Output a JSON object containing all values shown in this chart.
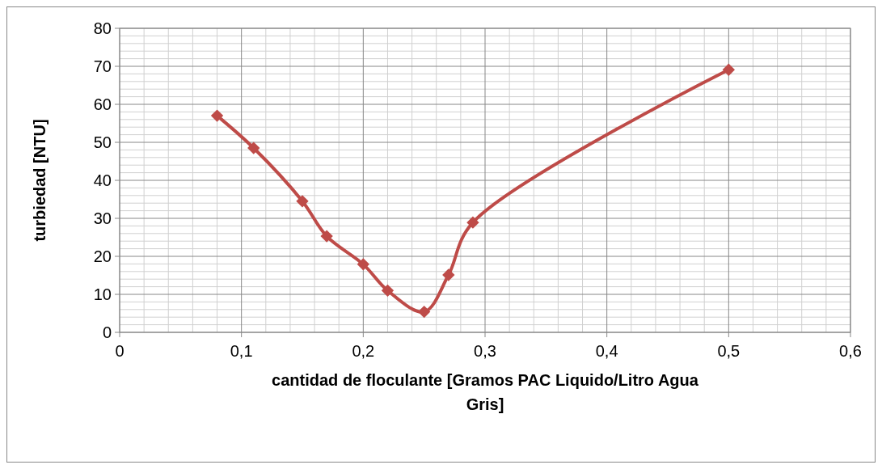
{
  "chart_data": {
    "type": "line",
    "xlabel": "cantidad de floculante [Gramos PAC Liquido/Litro Agua Gris]",
    "ylabel": "turbiedad [NTU]",
    "x": [
      0.08,
      0.11,
      0.15,
      0.17,
      0.2,
      0.22,
      0.25,
      0.27,
      0.29,
      0.5
    ],
    "series": [
      {
        "color": "#be4b48",
        "values": [
          57,
          48.5,
          34.5,
          25.3,
          17.9,
          11,
          5.4,
          15.1,
          28.9,
          69.1
        ]
      }
    ],
    "xlim": [
      0,
      0.6
    ],
    "xticks": [
      0,
      {
        "value": 0.1,
        "label": "0,1"
      },
      {
        "value": 0.2,
        "label": "0,2"
      },
      {
        "value": 0.3,
        "label": "0,3"
      },
      {
        "value": 0.4,
        "label": "0,4"
      },
      {
        "value": 0.5,
        "label": "0,5"
      },
      {
        "value": 0.6,
        "label": "0,6"
      }
    ],
    "ylim": [
      0,
      80
    ],
    "yticks": [
      0,
      10,
      20,
      30,
      40,
      50,
      60,
      70,
      80
    ],
    "grid": true,
    "marker": "diamond",
    "line_style": "solid"
  }
}
